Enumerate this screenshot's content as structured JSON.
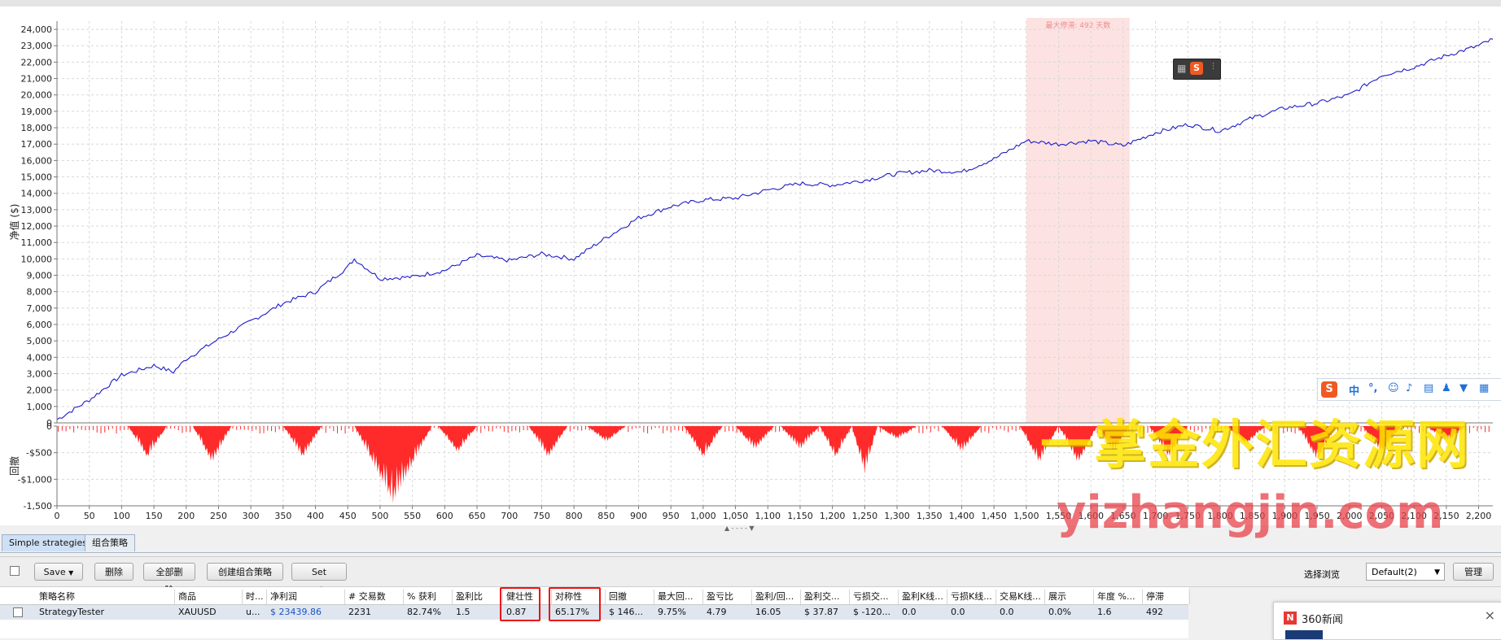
{
  "chart_data": {
    "type": "line",
    "equity": {
      "ylabel": "净值 ($)",
      "yticks": [
        0,
        1000,
        2000,
        3000,
        4000,
        5000,
        6000,
        7000,
        8000,
        9000,
        10000,
        11000,
        12000,
        13000,
        14000,
        15000,
        16000,
        17000,
        18000,
        19000,
        20000,
        21000,
        22000,
        23000,
        24000
      ],
      "ytick_labels": [
        "0",
        "1,000",
        "2,000",
        "3,000",
        "4,000",
        "5,000",
        "6,000",
        "7,000",
        "8,000",
        "9,000",
        "10,000",
        "11,000",
        "12,000",
        "13,000",
        "14,000",
        "15,000",
        "16,000",
        "17,000",
        "18,000",
        "19,000",
        "20,000",
        "21,000",
        "22,000",
        "23,000",
        "24,000"
      ],
      "ylim": [
        0,
        24500
      ],
      "x": [
        0,
        50,
        100,
        150,
        180,
        200,
        250,
        300,
        350,
        400,
        450,
        460,
        500,
        550,
        600,
        650,
        700,
        750,
        800,
        850,
        900,
        950,
        1000,
        1050,
        1100,
        1150,
        1200,
        1250,
        1300,
        1350,
        1400,
        1450,
        1500,
        1550,
        1600,
        1650,
        1700,
        1750,
        1800,
        1850,
        1900,
        1950,
        2000,
        2050,
        2100,
        2150,
        2200,
        2222
      ],
      "values": [
        200,
        1400,
        2900,
        3500,
        3100,
        3900,
        5100,
        6200,
        7300,
        8000,
        9500,
        10000,
        8800,
        8900,
        9300,
        10200,
        9900,
        10300,
        10000,
        11300,
        12500,
        13200,
        13600,
        13700,
        14200,
        14600,
        14500,
        14800,
        15200,
        15400,
        15300,
        16100,
        17200,
        17000,
        17200,
        16900,
        17700,
        18200,
        17800,
        18600,
        19200,
        19500,
        20000,
        21200,
        21700,
        22400,
        23000,
        23400
      ],
      "line_color": "#1c1cc8",
      "max_flat_label": "最大停滞: 492 天数",
      "max_flat_range": [
        1500,
        1660
      ],
      "highlight_color": "#fde2e2"
    },
    "drawdown": {
      "ylabel": "回撤",
      "yticks": [
        0,
        -500,
        -1000,
        -1500
      ],
      "ytick_labels": [
        "0",
        "-$500",
        "-$1,000",
        "-1,500"
      ],
      "ylim": [
        -1500,
        0
      ],
      "fill_color": "#ff2a2a",
      "troughs": [
        [
          140,
          -600
        ],
        [
          240,
          -700
        ],
        [
          380,
          -600
        ],
        [
          520,
          -1450
        ],
        [
          620,
          -500
        ],
        [
          760,
          -600
        ],
        [
          850,
          -300
        ],
        [
          1000,
          -600
        ],
        [
          1080,
          -450
        ],
        [
          1150,
          -450
        ],
        [
          1200,
          -600
        ],
        [
          1240,
          -900
        ],
        [
          1300,
          -250
        ],
        [
          1400,
          -500
        ],
        [
          1520,
          -700
        ],
        [
          1580,
          -700
        ],
        [
          1630,
          -500
        ],
        [
          1720,
          -600
        ],
        [
          1840,
          -350
        ],
        [
          1950,
          -650
        ],
        [
          2050,
          -500
        ],
        [
          2150,
          -300
        ]
      ]
    },
    "xaxis": {
      "xlim": [
        0,
        2222
      ],
      "xticks": [
        0,
        50,
        100,
        150,
        200,
        250,
        300,
        350,
        400,
        450,
        500,
        550,
        600,
        650,
        700,
        750,
        800,
        850,
        900,
        950,
        1000,
        1050,
        1100,
        1150,
        1200,
        1250,
        1300,
        1350,
        1400,
        1450,
        1500,
        1550,
        1600,
        1650,
        1700,
        1750,
        1800,
        1850,
        1900,
        1950,
        2000,
        2050,
        2100,
        2150,
        2200
      ],
      "xtick_labels": [
        "0",
        "50",
        "100",
        "150",
        "200",
        "250",
        "300",
        "350",
        "400",
        "450",
        "500",
        "550",
        "600",
        "650",
        "700",
        "750",
        "800",
        "850",
        "900",
        "950",
        "1,000",
        "1,050",
        "1,100",
        "1,150",
        "1,200",
        "1,250",
        "1,300",
        "1,350",
        "1,400",
        "1,450",
        "1,500",
        "1,550",
        "1,600",
        "1,650",
        "1,700",
        "1,750",
        "1,800",
        "1,850",
        "1,900",
        "1,950",
        "2,000",
        "2,050",
        "2,100",
        "2,150",
        "2,200"
      ]
    },
    "grid": true
  },
  "tabs": [
    {
      "label": "Simple strategies"
    },
    {
      "label": "组合策略"
    }
  ],
  "toolbar": {
    "save_label": "Save",
    "delete_label": "删除",
    "delete_all_label": "全部删除",
    "create_combo_label": "创建组合策略",
    "set_note_label": "Set note",
    "browse_label": "选择浏览",
    "browse_value": "Default(2)",
    "manage_label": "管理"
  },
  "table": {
    "headers": [
      "策略名称",
      "商品",
      "时...",
      "净利润",
      "# 交易数",
      "% 获利",
      "盈利比",
      "健壮性",
      "对称性",
      "回撤",
      "最大回...",
      "盈亏比",
      "盈利/回...",
      "盈利交...",
      "亏损交...",
      "盈利K线...",
      "亏损K线...",
      "交易K线...",
      "展示",
      "年度 %...",
      "停滞"
    ],
    "row": [
      "StrategyTester",
      "XAUUSD",
      "u...",
      "$ 23439.86",
      "2231",
      "82.74%",
      "1.5",
      "0.87",
      "65.17%",
      "$ 146...",
      "9.75%",
      "4.79",
      "16.05",
      "$ 37.87",
      "$ -120...",
      "0.0",
      "0.0",
      "0.0",
      "0.0%",
      "1.6",
      "492"
    ]
  },
  "overlays": {
    "watermark_cn": "一掌金外汇资源网",
    "watermark_en": "yizhangjin.com",
    "news_title": "360新闻",
    "ime_zh": "中"
  }
}
